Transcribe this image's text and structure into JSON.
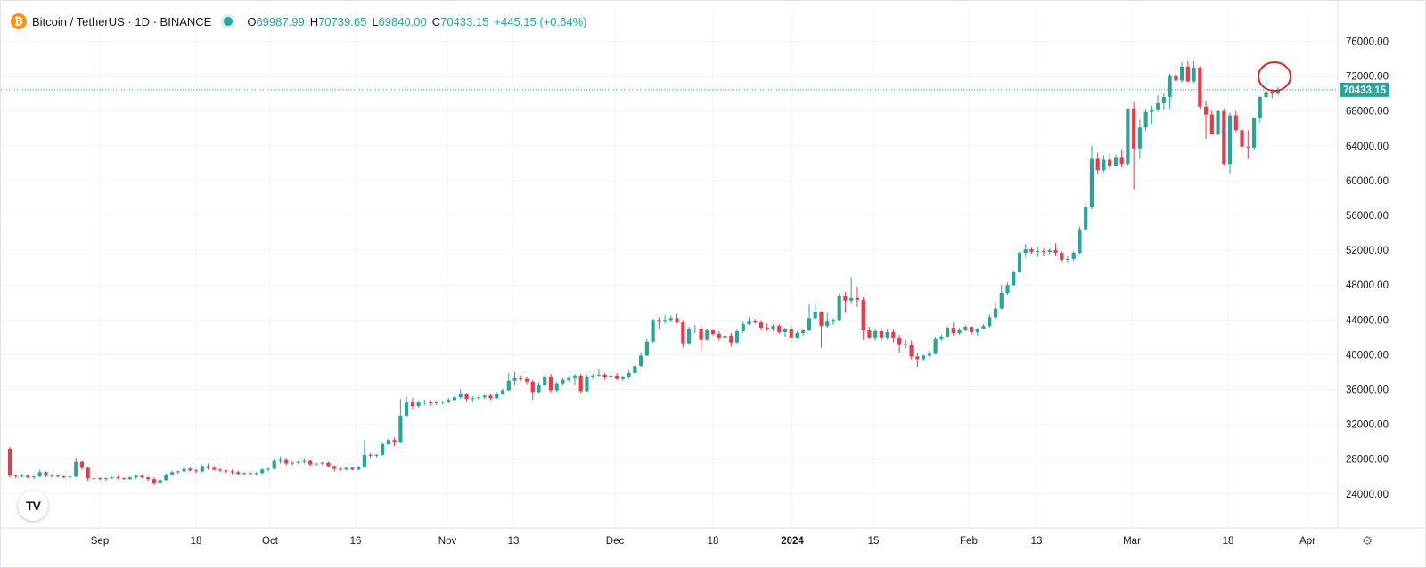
{
  "legend": {
    "symbol_icon": "bitcoin-icon",
    "symbol_glyph": "₿",
    "title": "Bitcoin / TetherUS · 1D · BINANCE",
    "status_icon": "market-open-dot-icon",
    "open_label": "O",
    "open": "69987.99",
    "high_label": "H",
    "high": "70739.65",
    "low_label": "L",
    "low": "69840.00",
    "close_label": "C",
    "close": "70433.15",
    "change": "+445.15 (+0.64%)"
  },
  "logo": {
    "icon": "tradingview-logo-icon",
    "text": "TV"
  },
  "settings_icon": "gear-icon",
  "colors": {
    "up": "#26a69a",
    "down": "#f23645",
    "grid": "#f0f3fa",
    "price_line": "#26a69a",
    "annotation": "#e0241b",
    "axis_text": "#131722"
  },
  "chart_data": {
    "type": "candlestick",
    "symbol": "Bitcoin / TetherUS",
    "interval": "1D",
    "exchange": "BINANCE",
    "ylim": [
      22000,
      78000
    ],
    "ytick_labels": [
      "24000.00",
      "28000.00",
      "32000.00",
      "36000.00",
      "40000.00",
      "44000.00",
      "48000.00",
      "52000.00",
      "56000.00",
      "60000.00",
      "64000.00",
      "68000.00",
      "72000.00",
      "76000.00"
    ],
    "ytick_values": [
      24000,
      28000,
      32000,
      36000,
      40000,
      44000,
      48000,
      52000,
      56000,
      60000,
      64000,
      68000,
      72000,
      76000
    ],
    "xtick_labels": [
      "Sep",
      "18",
      "Oct",
      "16",
      "Nov",
      "13",
      "Dec",
      "18",
      "2024",
      "15",
      "Feb",
      "13",
      "Mar",
      "18",
      "Apr"
    ],
    "xtick_bold": [
      false,
      false,
      false,
      false,
      false,
      false,
      false,
      false,
      true,
      false,
      false,
      false,
      false,
      false,
      false
    ],
    "last_price": 70433.15,
    "last_price_label": "70433.15",
    "grid": true,
    "annotation": "red circle around the latest candles near 72000",
    "candles": [
      [
        29200,
        29400,
        25900,
        26100
      ],
      [
        26100,
        26200,
        25800,
        26000
      ],
      [
        26000,
        26300,
        25900,
        26100
      ],
      [
        26100,
        26200,
        25800,
        25900
      ],
      [
        25900,
        26100,
        25700,
        26000
      ],
      [
        26000,
        26800,
        25900,
        26500
      ],
      [
        26500,
        26600,
        25900,
        26100
      ],
      [
        26100,
        26300,
        25900,
        26100
      ],
      [
        26100,
        26200,
        25900,
        26000
      ],
      [
        26000,
        26100,
        25800,
        25900
      ],
      [
        25900,
        26100,
        25800,
        26000
      ],
      [
        26000,
        28100,
        25900,
        27700
      ],
      [
        27700,
        27800,
        26800,
        27000
      ],
      [
        27000,
        27100,
        25500,
        25800
      ],
      [
        25800,
        26000,
        25600,
        25800
      ],
      [
        25800,
        25900,
        25600,
        25700
      ],
      [
        25700,
        25900,
        25500,
        25800
      ],
      [
        25800,
        26000,
        25700,
        25900
      ],
      [
        25900,
        26100,
        25700,
        25800
      ],
      [
        25800,
        25900,
        25600,
        25700
      ],
      [
        25700,
        26000,
        25600,
        25900
      ],
      [
        25900,
        26200,
        25700,
        26100
      ],
      [
        26100,
        26200,
        25800,
        25900
      ],
      [
        25900,
        26000,
        25500,
        25700
      ],
      [
        25700,
        25900,
        25000,
        25200
      ],
      [
        25200,
        25800,
        25100,
        25600
      ],
      [
        25600,
        26400,
        25500,
        26200
      ],
      [
        26200,
        26700,
        26100,
        26500
      ],
      [
        26500,
        26700,
        26300,
        26600
      ],
      [
        26600,
        27000,
        26500,
        26900
      ],
      [
        26900,
        27100,
        26600,
        26700
      ],
      [
        26700,
        26900,
        26400,
        26600
      ],
      [
        26600,
        27400,
        26500,
        27200
      ],
      [
        27200,
        27500,
        26800,
        27000
      ],
      [
        27000,
        27200,
        26700,
        26800
      ],
      [
        26800,
        27000,
        26500,
        26700
      ],
      [
        26700,
        26800,
        26400,
        26600
      ],
      [
        26600,
        26800,
        26300,
        26500
      ],
      [
        26500,
        26700,
        26200,
        26300
      ],
      [
        26300,
        26500,
        26100,
        26400
      ],
      [
        26400,
        26600,
        26200,
        26300
      ],
      [
        26300,
        26500,
        26100,
        26400
      ],
      [
        26400,
        27000,
        26300,
        26800
      ],
      [
        26800,
        27000,
        26600,
        26900
      ],
      [
        26900,
        28000,
        26800,
        27800
      ],
      [
        27800,
        28300,
        27500,
        27900
      ],
      [
        27900,
        28100,
        27300,
        27500
      ],
      [
        27500,
        27800,
        27300,
        27600
      ],
      [
        27600,
        27800,
        27400,
        27700
      ],
      [
        27700,
        28000,
        27500,
        27800
      ],
      [
        27800,
        27900,
        27200,
        27400
      ],
      [
        27400,
        27600,
        27200,
        27500
      ],
      [
        27500,
        27700,
        27300,
        27600
      ],
      [
        27600,
        27700,
        27100,
        27200
      ],
      [
        27200,
        27300,
        26600,
        26900
      ],
      [
        26900,
        27100,
        26600,
        26800
      ],
      [
        26800,
        27100,
        26700,
        27000
      ],
      [
        27000,
        27100,
        26700,
        26800
      ],
      [
        26800,
        27200,
        26700,
        27100
      ],
      [
        27100,
        30200,
        27000,
        28500
      ],
      [
        28500,
        28700,
        28100,
        28400
      ],
      [
        28400,
        28600,
        28200,
        28500
      ],
      [
        28500,
        29900,
        28400,
        29700
      ],
      [
        29700,
        30400,
        29600,
        30200
      ],
      [
        30200,
        30500,
        29500,
        29900
      ],
      [
        29900,
        34900,
        29800,
        33000
      ],
      [
        33000,
        35200,
        32900,
        34500
      ],
      [
        34500,
        35000,
        33800,
        34100
      ],
      [
        34100,
        34700,
        33900,
        34500
      ],
      [
        34500,
        34800,
        34200,
        34600
      ],
      [
        34600,
        34800,
        34100,
        34400
      ],
      [
        34400,
        34700,
        34200,
        34500
      ],
      [
        34500,
        34700,
        34300,
        34600
      ],
      [
        34600,
        35000,
        34400,
        34800
      ],
      [
        34800,
        35300,
        34700,
        35100
      ],
      [
        35100,
        36000,
        34900,
        35500
      ],
      [
        35500,
        35600,
        34600,
        34900
      ],
      [
        34900,
        35200,
        34500,
        35000
      ],
      [
        35000,
        35300,
        34800,
        35100
      ],
      [
        35100,
        35400,
        34900,
        35300
      ],
      [
        35300,
        35500,
        34800,
        35000
      ],
      [
        35000,
        35700,
        34900,
        35500
      ],
      [
        35500,
        36100,
        35400,
        35900
      ],
      [
        35900,
        37900,
        35800,
        37000
      ],
      [
        37000,
        38000,
        36500,
        37300
      ],
      [
        37300,
        37600,
        37000,
        37200
      ],
      [
        37200,
        37500,
        36600,
        36900
      ],
      [
        36900,
        37100,
        34800,
        35700
      ],
      [
        35700,
        36800,
        35600,
        36500
      ],
      [
        36500,
        37700,
        36300,
        37500
      ],
      [
        37500,
        37800,
        35700,
        35900
      ],
      [
        35900,
        36900,
        35700,
        36700
      ],
      [
        36700,
        37300,
        36500,
        37100
      ],
      [
        37100,
        37500,
        36900,
        37300
      ],
      [
        37300,
        37800,
        36500,
        37600
      ],
      [
        37600,
        37800,
        35600,
        35800
      ],
      [
        35800,
        37700,
        35700,
        37400
      ],
      [
        37400,
        37800,
        37200,
        37600
      ],
      [
        37600,
        38400,
        37500,
        37700
      ],
      [
        37700,
        37900,
        37100,
        37400
      ],
      [
        37400,
        37800,
        37200,
        37600
      ],
      [
        37600,
        37900,
        37100,
        37200
      ],
      [
        37200,
        37600,
        37000,
        37400
      ],
      [
        37400,
        38200,
        37200,
        37900
      ],
      [
        37900,
        38900,
        37800,
        38700
      ],
      [
        38700,
        40300,
        38600,
        39900
      ],
      [
        39900,
        41800,
        39800,
        41500
      ],
      [
        41500,
        44100,
        41400,
        44000
      ],
      [
        44000,
        44300,
        43000,
        43800
      ],
      [
        43800,
        44500,
        43600,
        44000
      ],
      [
        44000,
        44500,
        43700,
        44200
      ],
      [
        44200,
        44700,
        43600,
        43700
      ],
      [
        43700,
        44000,
        40800,
        41300
      ],
      [
        41300,
        43200,
        41200,
        42900
      ],
      [
        42900,
        43400,
        42500,
        43000
      ],
      [
        43000,
        43400,
        40400,
        41700
      ],
      [
        41700,
        43000,
        41600,
        42800
      ],
      [
        42800,
        43000,
        42200,
        42400
      ],
      [
        42400,
        42700,
        41600,
        41900
      ],
      [
        41900,
        42500,
        41700,
        42200
      ],
      [
        42200,
        42500,
        40900,
        41400
      ],
      [
        41400,
        42900,
        41300,
        42700
      ],
      [
        42700,
        43800,
        42500,
        43500
      ],
      [
        43500,
        44300,
        43400,
        43900
      ],
      [
        43900,
        44100,
        43600,
        43700
      ],
      [
        43700,
        44000,
        42800,
        43100
      ],
      [
        43100,
        43600,
        42700,
        42900
      ],
      [
        42900,
        43500,
        42700,
        43300
      ],
      [
        43300,
        43500,
        42400,
        42600
      ],
      [
        42600,
        43100,
        42100,
        43000
      ],
      [
        43000,
        43400,
        41500,
        41900
      ],
      [
        41900,
        42700,
        41800,
        42500
      ],
      [
        42500,
        42900,
        42200,
        42800
      ],
      [
        42800,
        45800,
        42700,
        44200
      ],
      [
        44200,
        45900,
        44000,
        44900
      ],
      [
        44900,
        45000,
        40800,
        43300
      ],
      [
        43300,
        44800,
        43100,
        43800
      ],
      [
        43800,
        44200,
        43400,
        44000
      ],
      [
        44000,
        47000,
        43900,
        46700
      ],
      [
        46700,
        47200,
        44800,
        46200
      ],
      [
        46200,
        48900,
        45900,
        46500
      ],
      [
        46500,
        47800,
        45500,
        46300
      ],
      [
        46300,
        46600,
        41700,
        42800
      ],
      [
        42800,
        43200,
        41800,
        41900
      ],
      [
        41900,
        43000,
        41600,
        42700
      ],
      [
        42700,
        43100,
        41600,
        41900
      ],
      [
        41900,
        43000,
        41700,
        42600
      ],
      [
        42600,
        42900,
        41400,
        41900
      ],
      [
        41900,
        42300,
        40200,
        41200
      ],
      [
        41200,
        41700,
        40700,
        41100
      ],
      [
        41100,
        41600,
        39500,
        39800
      ],
      [
        39800,
        40200,
        38600,
        39500
      ],
      [
        39500,
        40000,
        39300,
        39900
      ],
      [
        39900,
        40400,
        39700,
        40100
      ],
      [
        40100,
        42000,
        40000,
        41800
      ],
      [
        41800,
        42300,
        41600,
        42100
      ],
      [
        42100,
        43300,
        41900,
        43100
      ],
      [
        43100,
        43700,
        42200,
        42500
      ],
      [
        42500,
        43100,
        42300,
        42800
      ],
      [
        42800,
        43400,
        42700,
        43200
      ],
      [
        43200,
        43300,
        42300,
        42600
      ],
      [
        42600,
        43100,
        42200,
        43000
      ],
      [
        43000,
        43500,
        42900,
        43300
      ],
      [
        43300,
        44600,
        43100,
        44300
      ],
      [
        44300,
        46000,
        44100,
        45300
      ],
      [
        45300,
        48000,
        45200,
        47100
      ],
      [
        47100,
        48300,
        46900,
        48000
      ],
      [
        48000,
        49700,
        47900,
        49500
      ],
      [
        49500,
        51900,
        49400,
        51700
      ],
      [
        51700,
        52700,
        51200,
        52100
      ],
      [
        52100,
        52300,
        51600,
        51800
      ],
      [
        51800,
        52400,
        51200,
        51900
      ],
      [
        51900,
        52200,
        51300,
        51800
      ],
      [
        51800,
        52200,
        51500,
        52000
      ],
      [
        52000,
        52800,
        51300,
        51700
      ],
      [
        51700,
        51900,
        50700,
        50900
      ],
      [
        50900,
        51300,
        50600,
        51000
      ],
      [
        51000,
        51900,
        50800,
        51700
      ],
      [
        51700,
        54700,
        51600,
        54400
      ],
      [
        54400,
        57500,
        54300,
        57000
      ],
      [
        57000,
        64000,
        56700,
        62500
      ],
      [
        62500,
        63200,
        60700,
        61200
      ],
      [
        61200,
        62900,
        61000,
        62400
      ],
      [
        62400,
        63100,
        61300,
        61700
      ],
      [
        61700,
        63000,
        61600,
        62700
      ],
      [
        62700,
        63600,
        61500,
        61900
      ],
      [
        61900,
        68300,
        61800,
        68300
      ],
      [
        68300,
        69000,
        59000,
        63700
      ],
      [
        63700,
        67000,
        62500,
        66100
      ],
      [
        66100,
        68300,
        65700,
        67900
      ],
      [
        67900,
        68600,
        66500,
        68200
      ],
      [
        68200,
        69800,
        67900,
        68900
      ],
      [
        68900,
        70000,
        68200,
        69600
      ],
      [
        69600,
        72300,
        68300,
        72100
      ],
      [
        72100,
        72800,
        71300,
        71500
      ],
      [
        71500,
        73600,
        71300,
        73100
      ],
      [
        73100,
        73700,
        71300,
        71400
      ],
      [
        71400,
        73800,
        71200,
        73000
      ],
      [
        73000,
        73100,
        68300,
        68500
      ],
      [
        68500,
        69100,
        64800,
        67600
      ],
      [
        67600,
        68100,
        65500,
        65300
      ],
      [
        65300,
        68000,
        65200,
        68000
      ],
      [
        68000,
        68300,
        61800,
        61900
      ],
      [
        61900,
        67800,
        60800,
        67500
      ],
      [
        67500,
        68000,
        65600,
        65800
      ],
      [
        65800,
        67000,
        63000,
        63900
      ],
      [
        63900,
        65800,
        62500,
        63800
      ],
      [
        63800,
        67300,
        63600,
        67200
      ],
      [
        67200,
        69700,
        66700,
        69600
      ],
      [
        69600,
        71700,
        69400,
        70200
      ],
      [
        70200,
        70500,
        69500,
        69990
      ],
      [
        69988,
        70740,
        69840,
        70433
      ]
    ]
  }
}
